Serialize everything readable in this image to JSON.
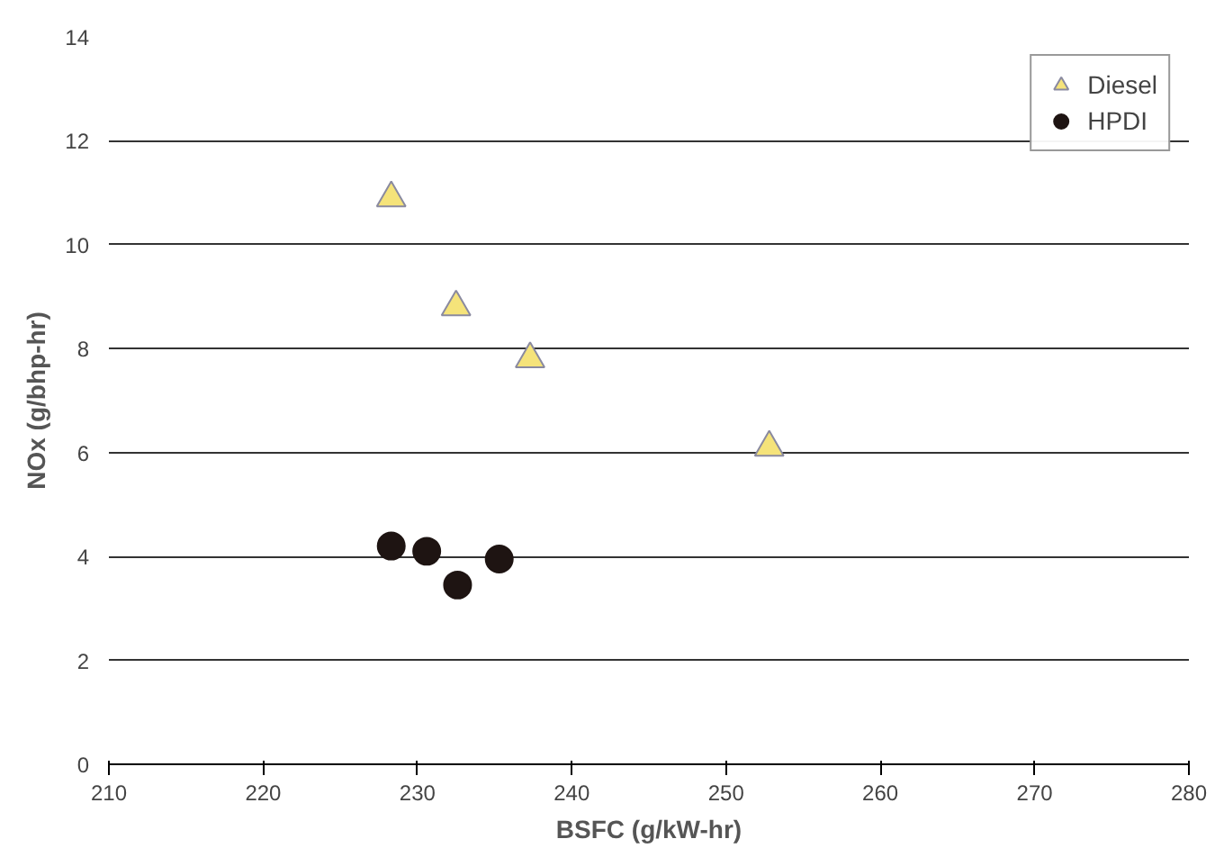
{
  "chart_data": {
    "type": "scatter",
    "xlabel": "BSFC (g/kW-hr)",
    "ylabel": "NOx (g/bhp-hr)",
    "xlim": [
      210,
      280
    ],
    "xticks": [
      210,
      220,
      230,
      240,
      250,
      260,
      270,
      280
    ],
    "ylim": [
      0,
      14
    ],
    "yticks": [
      0,
      2,
      4,
      6,
      8,
      10,
      12,
      14
    ],
    "grid": "y",
    "legend": "top right",
    "series": [
      {
        "name": "Diesel",
        "color": "#f5e37a",
        "marker": "triangle",
        "x": [
          228.3,
          232.5,
          237.3,
          252.8
        ],
        "values": [
          10.9,
          8.8,
          7.8,
          6.1
        ]
      },
      {
        "name": "HPDI",
        "color": "#1e1412",
        "marker": "circle",
        "x": [
          228.3,
          230.6,
          232.6,
          235.3
        ],
        "values": [
          4.2,
          4.1,
          3.45,
          3.95
        ]
      }
    ]
  }
}
